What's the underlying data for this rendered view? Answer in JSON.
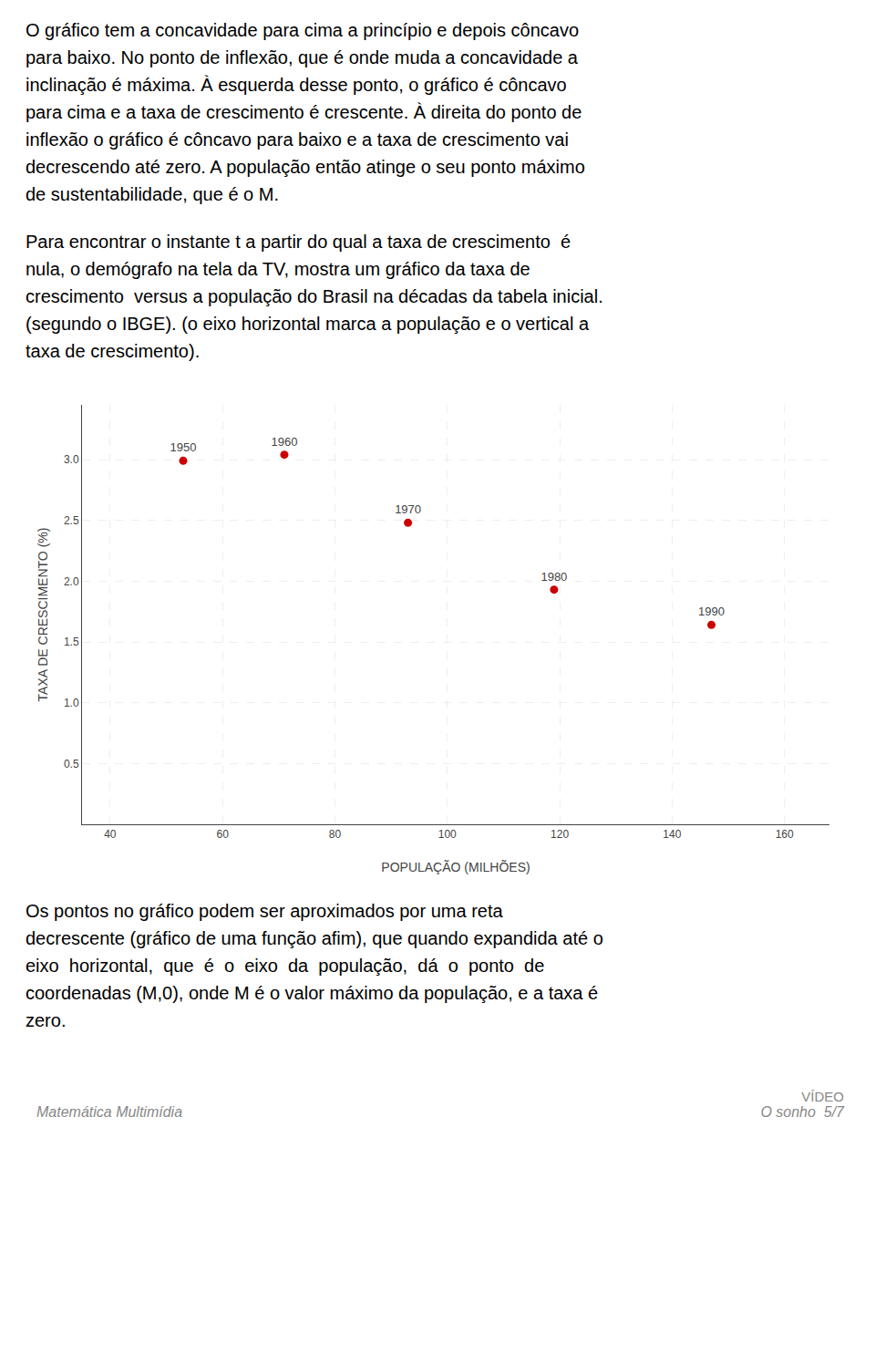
{
  "chart_data": {
    "type": "scatter",
    "x": [
      53,
      71,
      93,
      119,
      147
    ],
    "values": [
      2.99,
      3.04,
      2.48,
      1.93,
      1.64
    ],
    "point_labels": [
      "1950",
      "1960",
      "1970",
      "1980",
      "1990"
    ],
    "color": "#cc0000",
    "marker": "circle",
    "xlabel": "POPULAÇÃO (MILHÕES)",
    "ylabel": "TAXA DE CRESCIMENTO (%)",
    "xlim": [
      35,
      168
    ],
    "ylim": [
      0,
      3.45
    ],
    "xticks": [
      40,
      60,
      80,
      100,
      120,
      140,
      160
    ],
    "yticks": [
      0.5,
      {
        "value": 1.0,
        "label": "1.0"
      },
      1.5,
      {
        "value": 2.0,
        "label": "2.0"
      },
      2.5,
      {
        "value": 3.0,
        "label": "3.0"
      }
    ],
    "grid": true,
    "annotations": [
      "O gráfico tem a concavidade para cima a princípio e depois côncavo\npara baixo. No ponto de inflexão, que é onde muda a concavidade a\ninclinação é máxima. À esquerda desse ponto, o gráfico é côncavo\npara cima e a taxa de crescimento é crescente. À direita do ponto de\ninflexão o gráfico é côncavo para baixo e a taxa de crescimento vai\ndecrescendo até zero. A população então atinge o seu ponto máximo\nde sustentabilidade, que é o M.",
      "Para encontrar o instante t a partir do qual a taxa de crescimento  é\nnula, o demógrafo na tela da TV, mostra um gráfico da taxa de\ncrescimento  versus a população do Brasil na décadas da tabela inicial.\n(segundo o IBGE). (o eixo horizontal marca a população e o vertical a\ntaxa de crescimento).",
      "Os pontos no gráfico podem ser aproximados por uma reta\ndecrescente (gráfico de uma função afim), que quando expandida até o\neixo  horizontal,  que  é  o  eixo  da  população,  dá  o  ponto  de\ncoordenadas (M,0), onde M é o valor máximo da população, e a taxa é\nzero.",
      "Matemática Multimídia",
      "VÍDEO",
      "O sonho  5/7"
    ]
  }
}
